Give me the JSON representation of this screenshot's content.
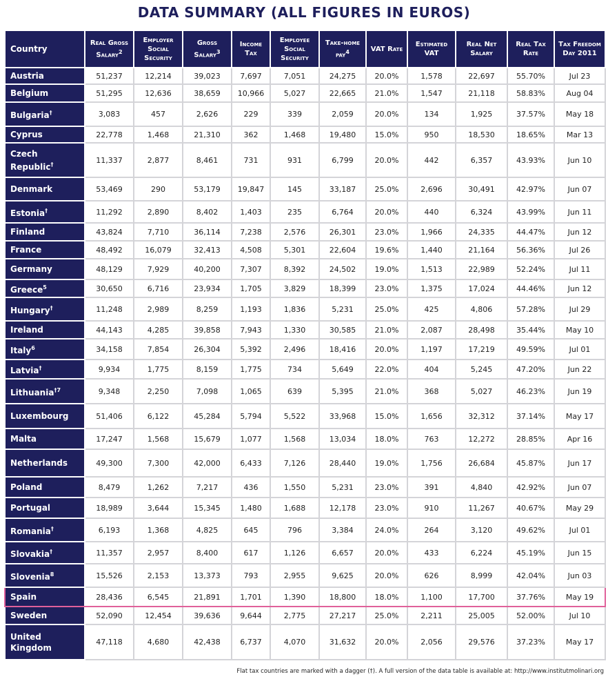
{
  "title": "DATA SUMMARY (ALL FIGURES IN EUROS)",
  "table": {
    "header": [
      {
        "text": "Country"
      },
      {
        "text": "Real Gross Salary",
        "sup": "2"
      },
      {
        "text": "Employer Social Security"
      },
      {
        "text": "Gross Salary",
        "sup": "3"
      },
      {
        "text": "Income Tax"
      },
      {
        "text": "Employee Social Security"
      },
      {
        "text": "Take-home pay",
        "sup": "4"
      },
      {
        "text": "VAT Rate"
      },
      {
        "text": "Estimated VAT"
      },
      {
        "text": "Real Net Salary"
      },
      {
        "text": "Real Tax Rate"
      },
      {
        "text": "Tax Freedom Day 2011"
      }
    ],
    "rows": [
      {
        "country": "Austria",
        "cells": [
          "51,237",
          "12,214",
          "39,023",
          "7,697",
          "7,051",
          "24,275",
          "20.0%",
          "1,578",
          "22,697",
          "55.70%",
          "Jul 23"
        ]
      },
      {
        "country": "Belgium",
        "cells": [
          "51,295",
          "12,636",
          "38,659",
          "10,966",
          "5,027",
          "22,665",
          "21.0%",
          "1,547",
          "21,118",
          "58.83%",
          "Aug 04"
        ]
      },
      {
        "country": "Bulgaria",
        "sup": "†",
        "cells": [
          "3,083",
          "457",
          "2,626",
          "229",
          "339",
          "2,059",
          "20.0%",
          "134",
          "1,925",
          "37.57%",
          "May 18"
        ]
      },
      {
        "country": "Cyprus",
        "cells": [
          "22,778",
          "1,468",
          "21,310",
          "362",
          "1,468",
          "19,480",
          "15.0%",
          "950",
          "18,530",
          "18.65%",
          "Mar 13"
        ]
      },
      {
        "country": "Czech Republic",
        "sup": "†",
        "cells": [
          "11,337",
          "2,877",
          "8,461",
          "731",
          "931",
          "6,799",
          "20.0%",
          "442",
          "6,357",
          "43.93%",
          "Jun 10"
        ]
      },
      {
        "country": "Denmark",
        "cells": [
          "53,469",
          "290",
          "53,179",
          "19,847",
          "145",
          "33,187",
          "25.0%",
          "2,696",
          "30,491",
          "42.97%",
          "Jun 07"
        ]
      },
      {
        "country": "Estonia",
        "sup": "†",
        "cells": [
          "11,292",
          "2,890",
          "8,402",
          "1,403",
          "235",
          "6,764",
          "20.0%",
          "440",
          "6,324",
          "43.99%",
          "Jun 11"
        ]
      },
      {
        "country": "Finland",
        "cells": [
          "43,824",
          "7,710",
          "36,114",
          "7,238",
          "2,576",
          "26,301",
          "23.0%",
          "1,966",
          "24,335",
          "44.47%",
          "Jun 12"
        ]
      },
      {
        "country": "France",
        "cells": [
          "48,492",
          "16,079",
          "32,413",
          "4,508",
          "5,301",
          "22,604",
          "19.6%",
          "1,440",
          "21,164",
          "56.36%",
          "Jul 26"
        ]
      },
      {
        "country": "Germany",
        "cells": [
          "48,129",
          "7,929",
          "40,200",
          "7,307",
          "8,392",
          "24,502",
          "19.0%",
          "1,513",
          "22,989",
          "52.24%",
          "Jul 11"
        ]
      },
      {
        "country": "Greece",
        "sup": "5",
        "cells": [
          "30,650",
          "6,716",
          "23,934",
          "1,705",
          "3,829",
          "18,399",
          "23.0%",
          "1,375",
          "17,024",
          "44.46%",
          "Jun 12"
        ]
      },
      {
        "country": "Hungary",
        "sup": "†",
        "cells": [
          "11,248",
          "2,989",
          "8,259",
          "1,193",
          "1,836",
          "5,231",
          "25.0%",
          "425",
          "4,806",
          "57.28%",
          "Jul 29"
        ]
      },
      {
        "country": "Ireland",
        "cells": [
          "44,143",
          "4,285",
          "39,858",
          "7,943",
          "1,330",
          "30,585",
          "21.0%",
          "2,087",
          "28,498",
          "35.44%",
          "May 10"
        ]
      },
      {
        "country": "Italy",
        "sup": "6",
        "cells": [
          "34,158",
          "7,854",
          "26,304",
          "5,392",
          "2,496",
          "18,416",
          "20.0%",
          "1,197",
          "17,219",
          "49.59%",
          "Jul 01"
        ]
      },
      {
        "country": "Latvia",
        "sup": "†",
        "cells": [
          "9,934",
          "1,775",
          "8,159",
          "1,775",
          "734",
          "5,649",
          "22.0%",
          "404",
          "5,245",
          "47.20%",
          "Jun 22"
        ]
      },
      {
        "country": "Lithuania",
        "sup": "†7",
        "cells": [
          "9,348",
          "2,250",
          "7,098",
          "1,065",
          "639",
          "5,395",
          "21.0%",
          "368",
          "5,027",
          "46.23%",
          "Jun 19"
        ]
      },
      {
        "country": "Luxembourg",
        "cells": [
          "51,406",
          "6,122",
          "45,284",
          "5,794",
          "5,522",
          "33,968",
          "15.0%",
          "1,656",
          "32,312",
          "37.14%",
          "May 17"
        ]
      },
      {
        "country": "Malta",
        "cells": [
          "17,247",
          "1,568",
          "15,679",
          "1,077",
          "1,568",
          "13,034",
          "18.0%",
          "763",
          "12,272",
          "28.85%",
          "Apr 16"
        ]
      },
      {
        "country": "Netherlands",
        "cells": [
          "49,300",
          "7,300",
          "42,000",
          "6,433",
          "7,126",
          "28,440",
          "19.0%",
          "1,756",
          "26,684",
          "45.87%",
          "Jun 17"
        ]
      },
      {
        "country": "Poland",
        "cells": [
          "8,479",
          "1,262",
          "7,217",
          "436",
          "1,550",
          "5,231",
          "23.0%",
          "391",
          "4,840",
          "42.92%",
          "Jun 07"
        ]
      },
      {
        "country": "Portugal",
        "cells": [
          "18,989",
          "3,644",
          "15,345",
          "1,480",
          "1,688",
          "12,178",
          "23.0%",
          "910",
          "11,267",
          "40.67%",
          "May 29"
        ]
      },
      {
        "country": "Romania",
        "sup": "†",
        "cells": [
          "6,193",
          "1,368",
          "4,825",
          "645",
          "796",
          "3,384",
          "24.0%",
          "264",
          "3,120",
          "49.62%",
          "Jul 01"
        ]
      },
      {
        "country": "Slovakia",
        "sup": "†",
        "cells": [
          "11,357",
          "2,957",
          "8,400",
          "617",
          "1,126",
          "6,657",
          "20.0%",
          "433",
          "6,224",
          "45.19%",
          "Jun 15"
        ]
      },
      {
        "country": "Slovenia",
        "sup": "8",
        "cells": [
          "15,526",
          "2,153",
          "13,373",
          "793",
          "2,955",
          "9,625",
          "20.0%",
          "626",
          "8,999",
          "42.04%",
          "Jun 03"
        ]
      },
      {
        "country": "Spain",
        "cells": [
          "28,436",
          "6,545",
          "21,891",
          "1,701",
          "1,390",
          "18,800",
          "18.0%",
          "1,100",
          "17,700",
          "37.76%",
          "May 19"
        ]
      },
      {
        "country": "Sweden",
        "cells": [
          "52,090",
          "12,454",
          "39,636",
          "9,644",
          "2,775",
          "27,217",
          "25.0%",
          "2,211",
          "25,005",
          "52.00%",
          "Jul 10"
        ]
      },
      {
        "country": "United Kingdom",
        "cells": [
          "47,118",
          "4,680",
          "42,438",
          "6,737",
          "4,070",
          "31,632",
          "20.0%",
          "2,056",
          "29,576",
          "37.23%",
          "May 17"
        ]
      }
    ]
  },
  "footer": "Flat tax countries are marked with a dagger (†). A full version of the data table is available at: http://www.institutmolinari.org"
}
